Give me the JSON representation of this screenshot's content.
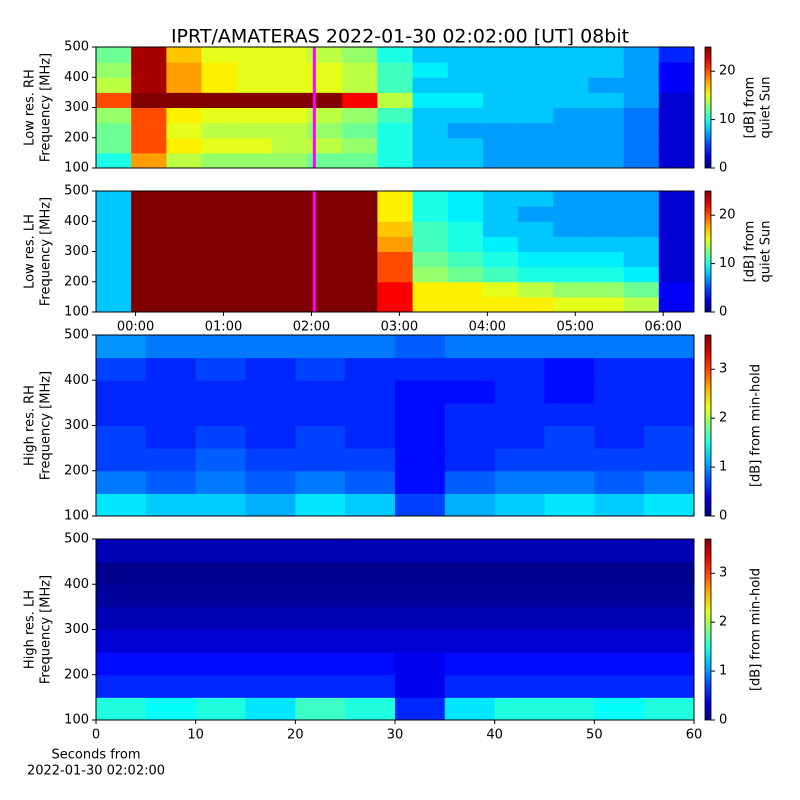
{
  "title": "IPRT/AMATERAS 2022-01-30 02:02:00 [UT]   08bit",
  "chart_data": [
    {
      "type": "heatmap",
      "ylabel": [
        "Low res. RH",
        "Frequency [MHz]"
      ],
      "clabel": [
        "[dB] from",
        "quiet Sun"
      ],
      "xlim": [
        -0.45,
        6.35
      ],
      "ylim": [
        100,
        500
      ],
      "yticks": [
        100,
        200,
        300,
        400,
        500
      ],
      "clim": [
        0,
        25
      ],
      "cticks": [
        0,
        10,
        20
      ],
      "marker_x": 2.033,
      "marker_color": "#ff00ff",
      "x": [
        -0.25,
        0.15,
        0.55,
        0.95,
        1.35,
        1.75,
        2.15,
        2.55,
        2.95,
        3.35,
        3.75,
        4.15,
        4.55,
        4.95,
        5.35,
        5.75,
        6.15
      ],
      "y": [
        125,
        175,
        225,
        275,
        325,
        375,
        425,
        475
      ],
      "values": [
        [
          10,
          18,
          14,
          13,
          13,
          13,
          12,
          12,
          10,
          8,
          8,
          7,
          7,
          7,
          7,
          6,
          2
        ],
        [
          12,
          20,
          16,
          15,
          15,
          14,
          14,
          13,
          10,
          8,
          8,
          7,
          7,
          7,
          7,
          6,
          2
        ],
        [
          12,
          20,
          15,
          14,
          14,
          14,
          13,
          12,
          10,
          8,
          7,
          7,
          7,
          7,
          7,
          6,
          2
        ],
        [
          13,
          20,
          16,
          15,
          15,
          15,
          14,
          13,
          11,
          8,
          8,
          8,
          8,
          7,
          7,
          6,
          2
        ],
        [
          20,
          25,
          25,
          25,
          25,
          25,
          25,
          22,
          14,
          9,
          9,
          8,
          8,
          8,
          8,
          7,
          2
        ],
        [
          14,
          24,
          18,
          16,
          15,
          15,
          15,
          14,
          11,
          8,
          8,
          8,
          8,
          8,
          7,
          7,
          3
        ],
        [
          13,
          24,
          18,
          16,
          15,
          15,
          15,
          14,
          11,
          9,
          8,
          8,
          8,
          8,
          8,
          7,
          3
        ],
        [
          12,
          24,
          17,
          15,
          15,
          15,
          14,
          13,
          10,
          8,
          8,
          8,
          8,
          8,
          8,
          7,
          4
        ]
      ]
    },
    {
      "type": "heatmap",
      "ylabel": [
        "Low res. LH",
        "Frequency [MHz]"
      ],
      "clabel": [
        "[dB] from",
        "quiet Sun"
      ],
      "xlim": [
        -0.45,
        6.35
      ],
      "ylim": [
        100,
        500
      ],
      "yticks": [
        100,
        200,
        300,
        400,
        500
      ],
      "xticks": [
        {
          "value": 0,
          "label": "00:00"
        },
        {
          "value": 1,
          "label": "01:00"
        },
        {
          "value": 2,
          "label": "02:00"
        },
        {
          "value": 3,
          "label": "03:00"
        },
        {
          "value": 4,
          "label": "04:00"
        },
        {
          "value": 5,
          "label": "05:00"
        },
        {
          "value": 6,
          "label": "06:00"
        }
      ],
      "clim": [
        0,
        25
      ],
      "cticks": [
        0,
        10,
        20
      ],
      "marker_x": 2.033,
      "marker_color": "#ff00ff",
      "x": [
        -0.25,
        0.15,
        0.55,
        0.95,
        1.35,
        1.75,
        2.15,
        2.55,
        2.95,
        3.35,
        3.75,
        4.15,
        4.55,
        4.95,
        5.35,
        5.75,
        6.15
      ],
      "y": [
        125,
        175,
        225,
        275,
        325,
        375,
        425,
        475
      ],
      "values": [
        [
          8,
          25,
          25,
          25,
          25,
          25,
          25,
          25,
          22,
          16,
          16,
          16,
          16,
          15,
          15,
          14,
          3
        ],
        [
          8,
          25,
          25,
          25,
          25,
          25,
          25,
          25,
          22,
          16,
          16,
          15,
          14,
          13,
          13,
          12,
          3
        ],
        [
          8,
          25,
          25,
          25,
          25,
          25,
          25,
          25,
          20,
          13,
          12,
          11,
          10,
          10,
          10,
          9,
          2
        ],
        [
          8,
          25,
          25,
          25,
          25,
          25,
          25,
          25,
          20,
          12,
          11,
          10,
          9,
          9,
          9,
          8,
          2
        ],
        [
          8,
          25,
          25,
          25,
          25,
          25,
          25,
          25,
          18,
          11,
          10,
          9,
          8,
          8,
          8,
          8,
          2
        ],
        [
          8,
          25,
          25,
          25,
          25,
          25,
          25,
          25,
          17,
          11,
          10,
          8,
          8,
          7,
          7,
          7,
          2
        ],
        [
          8,
          25,
          25,
          25,
          25,
          25,
          25,
          25,
          16,
          10,
          9,
          8,
          7,
          7,
          7,
          7,
          2
        ],
        [
          8,
          25,
          25,
          25,
          25,
          25,
          25,
          25,
          16,
          10,
          9,
          8,
          8,
          7,
          7,
          7,
          2
        ]
      ]
    },
    {
      "type": "heatmap",
      "ylabel": [
        "High res. RH",
        "Frequency [MHz]"
      ],
      "clabel": [
        "[dB] from min-hold"
      ],
      "xlim": [
        0,
        60
      ],
      "ylim": [
        100,
        500
      ],
      "yticks": [
        100,
        200,
        300,
        400,
        500
      ],
      "clim": [
        0,
        3.7
      ],
      "cticks": [
        0,
        1,
        2,
        3
      ],
      "x": [
        2.5,
        7.5,
        12.5,
        17.5,
        22.5,
        27.5,
        32.5,
        37.5,
        42.5,
        47.5,
        52.5,
        57.5
      ],
      "y": [
        125,
        175,
        225,
        275,
        325,
        375,
        425,
        475
      ],
      "values": [
        [
          1.3,
          1.2,
          1.2,
          1.1,
          1.3,
          1.2,
          0.7,
          1.1,
          1.2,
          1.3,
          1.2,
          1.3
        ],
        [
          0.9,
          0.8,
          0.9,
          0.8,
          0.9,
          0.8,
          0.5,
          0.8,
          0.9,
          0.9,
          0.8,
          0.9
        ],
        [
          0.7,
          0.7,
          0.8,
          0.7,
          0.7,
          0.7,
          0.5,
          0.6,
          0.7,
          0.7,
          0.7,
          0.7
        ],
        [
          0.7,
          0.6,
          0.7,
          0.6,
          0.7,
          0.6,
          0.5,
          0.6,
          0.6,
          0.7,
          0.6,
          0.7
        ],
        [
          0.6,
          0.6,
          0.6,
          0.6,
          0.6,
          0.6,
          0.5,
          0.6,
          0.6,
          0.6,
          0.6,
          0.6
        ],
        [
          0.6,
          0.6,
          0.6,
          0.6,
          0.6,
          0.6,
          0.5,
          0.5,
          0.6,
          0.5,
          0.6,
          0.6
        ],
        [
          0.7,
          0.6,
          0.7,
          0.6,
          0.7,
          0.6,
          0.6,
          0.6,
          0.6,
          0.5,
          0.6,
          0.6
        ],
        [
          1.0,
          0.9,
          0.9,
          0.9,
          0.9,
          0.9,
          0.8,
          0.9,
          0.9,
          0.9,
          0.9,
          0.9
        ]
      ]
    },
    {
      "type": "heatmap",
      "ylabel": [
        "High res. LH",
        "Frequency [MHz]"
      ],
      "clabel": [
        "[dB] from min-hold"
      ],
      "xlim": [
        0,
        60
      ],
      "ylim": [
        100,
        500
      ],
      "yticks": [
        100,
        200,
        300,
        400,
        500
      ],
      "xticks": [
        0,
        10,
        20,
        30,
        40,
        50,
        60
      ],
      "xlabel": [
        "Seconds from",
        "2022-01-30 02:02:00"
      ],
      "clim": [
        0,
        3.7
      ],
      "cticks": [
        0,
        1,
        2,
        3
      ],
      "x": [
        2.5,
        7.5,
        12.5,
        17.5,
        22.5,
        27.5,
        32.5,
        37.5,
        42.5,
        47.5,
        52.5,
        57.5
      ],
      "y": [
        125,
        175,
        225,
        275,
        325,
        375,
        425,
        475
      ],
      "values": [
        [
          1.5,
          1.4,
          1.5,
          1.3,
          1.6,
          1.5,
          0.6,
          1.3,
          1.5,
          1.5,
          1.4,
          1.5
        ],
        [
          0.6,
          0.6,
          0.6,
          0.6,
          0.6,
          0.6,
          0.4,
          0.6,
          0.6,
          0.6,
          0.6,
          0.6
        ],
        [
          0.5,
          0.5,
          0.5,
          0.5,
          0.5,
          0.5,
          0.4,
          0.5,
          0.5,
          0.5,
          0.5,
          0.5
        ],
        [
          0.3,
          0.3,
          0.3,
          0.3,
          0.3,
          0.3,
          0.3,
          0.3,
          0.3,
          0.3,
          0.3,
          0.3
        ],
        [
          0.2,
          0.2,
          0.2,
          0.2,
          0.2,
          0.2,
          0.2,
          0.2,
          0.2,
          0.2,
          0.2,
          0.2
        ],
        [
          0.1,
          0.1,
          0.1,
          0.1,
          0.1,
          0.1,
          0.1,
          0.1,
          0.1,
          0.1,
          0.1,
          0.1
        ],
        [
          0.05,
          0.05,
          0.05,
          0.05,
          0.05,
          0.05,
          0.05,
          0.05,
          0.05,
          0.05,
          0.05,
          0.05
        ],
        [
          0.2,
          0.2,
          0.2,
          0.2,
          0.2,
          0.2,
          0.2,
          0.2,
          0.2,
          0.2,
          0.2,
          0.2
        ]
      ]
    }
  ]
}
